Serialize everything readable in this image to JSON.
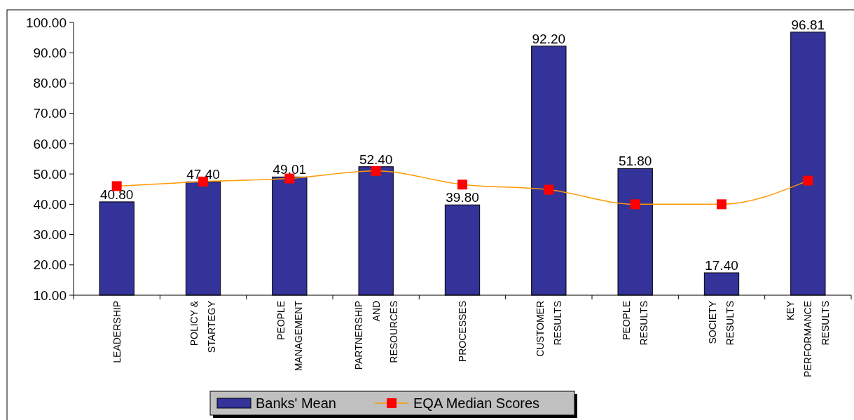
{
  "chart_data": {
    "type": "bar",
    "categories": [
      "LEADERSHIP",
      "POLICY & STARTEGY",
      "PEOPLE MANAGEMENT",
      "PARTNERSHIP AND RESOURCES",
      "PROCESSES",
      "CUSTOMER RESULTS",
      "PEOPLE RESULTS",
      "SOCIETY RESULTS",
      "KEY PERFORMANCE RESULTS"
    ],
    "series": [
      {
        "name": "Banks' Mean",
        "color": "#333399",
        "values": [
          40.8,
          47.4,
          49.01,
          52.4,
          39.8,
          92.2,
          51.8,
          17.4,
          96.81
        ],
        "value_labels": [
          "40.80",
          "47.40",
          "49.01",
          "52.40",
          "39.80",
          "92.20",
          "51.80",
          "17.40",
          "96.81"
        ]
      },
      {
        "name": "EQA Median Scores",
        "type": "line",
        "color": "#ff9900",
        "colors": [
          "#ff0000",
          "#ff0000",
          "#ff0000",
          "#ff0000",
          "#ff0000",
          "#ff0000",
          "#ff0000",
          "#ff0000",
          "#ff0000"
        ],
        "marker": "square",
        "values": [
          46,
          47.5,
          48.5,
          51,
          46.5,
          44.8,
          40,
          40,
          47.8
        ]
      }
    ],
    "ylim": [
      10,
      100
    ],
    "yticks": [
      {
        "value": 10,
        "label": "10.00"
      },
      {
        "value": 20,
        "label": "20.00"
      },
      {
        "value": 30,
        "label": "30.00"
      },
      {
        "value": 40,
        "label": "40.00"
      },
      {
        "value": 50,
        "label": "50.00"
      },
      {
        "value": 60,
        "label": "60.00"
      },
      {
        "value": 70,
        "label": "70.00"
      },
      {
        "value": 80,
        "label": "80.00"
      },
      {
        "value": 90,
        "label": "90.00"
      },
      {
        "value": 100,
        "label": "100.00"
      }
    ],
    "legend": "bottom",
    "grid": false
  }
}
